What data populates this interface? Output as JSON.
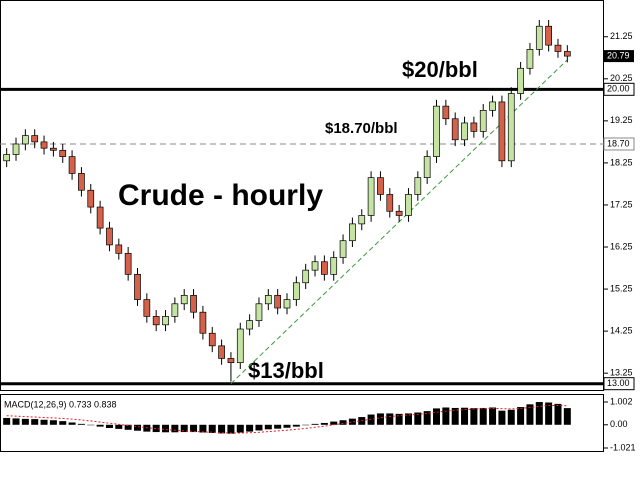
{
  "chart_data": [
    {
      "type": "candlestick",
      "title": "Crude - hourly",
      "open": [
        18.3,
        18.45,
        18.7,
        18.9,
        18.75,
        18.6,
        18.55,
        18.4,
        18.0,
        17.6,
        17.2,
        16.7,
        16.3,
        16.1,
        15.6,
        15.0,
        14.6,
        14.4,
        14.6,
        14.9,
        15.1,
        14.7,
        14.2,
        13.9,
        13.6,
        13.5,
        14.3,
        14.5,
        14.9,
        15.1,
        14.8,
        15.0,
        15.4,
        15.7,
        15.9,
        15.6,
        16.0,
        16.4,
        16.8,
        17.0,
        17.9,
        17.5,
        17.1,
        17.0,
        17.5,
        17.9,
        18.4,
        19.6,
        19.3,
        18.8,
        19.2,
        19.0,
        19.5,
        19.7,
        18.3,
        19.9,
        20.5,
        20.95,
        21.5,
        21.05,
        20.9
      ],
      "high": [
        18.6,
        18.85,
        19.05,
        19.05,
        18.9,
        18.75,
        18.7,
        18.55,
        18.15,
        17.75,
        17.35,
        16.85,
        16.45,
        16.25,
        15.75,
        15.15,
        14.75,
        14.75,
        15.05,
        15.25,
        15.25,
        14.85,
        14.35,
        14.05,
        13.75,
        14.45,
        14.65,
        15.05,
        15.25,
        15.25,
        15.15,
        15.55,
        15.85,
        16.05,
        16.05,
        16.15,
        16.55,
        16.95,
        17.15,
        18.05,
        18.05,
        17.65,
        17.25,
        17.65,
        18.05,
        18.55,
        19.75,
        19.75,
        19.45,
        19.35,
        19.35,
        19.65,
        19.85,
        19.85,
        20.05,
        20.65,
        21.1,
        21.65,
        21.65,
        21.2,
        21.05
      ],
      "low": [
        18.15,
        18.3,
        18.55,
        18.6,
        18.45,
        18.4,
        18.25,
        17.85,
        17.45,
        17.05,
        16.55,
        16.15,
        15.95,
        15.45,
        14.85,
        14.45,
        14.25,
        14.25,
        14.45,
        14.75,
        14.55,
        14.05,
        13.75,
        13.45,
        13.05,
        13.35,
        14.15,
        14.35,
        14.75,
        14.65,
        14.65,
        14.85,
        15.25,
        15.55,
        15.45,
        15.45,
        15.85,
        16.25,
        16.65,
        16.85,
        17.35,
        16.95,
        16.85,
        16.85,
        17.35,
        17.75,
        18.25,
        19.15,
        18.65,
        18.65,
        18.85,
        18.85,
        19.35,
        18.15,
        18.15,
        19.75,
        20.35,
        20.8,
        20.9,
        20.75,
        20.64
      ],
      "close": [
        18.45,
        18.7,
        18.9,
        18.75,
        18.6,
        18.55,
        18.4,
        18.0,
        17.6,
        17.2,
        16.7,
        16.3,
        16.1,
        15.6,
        15.0,
        14.6,
        14.4,
        14.6,
        14.9,
        15.1,
        14.7,
        14.2,
        13.9,
        13.6,
        13.5,
        14.3,
        14.5,
        14.9,
        15.1,
        14.8,
        15.0,
        15.4,
        15.7,
        15.9,
        15.6,
        16.0,
        16.4,
        16.8,
        17.0,
        17.9,
        17.5,
        17.1,
        17.0,
        17.5,
        17.9,
        18.4,
        19.6,
        19.3,
        18.8,
        19.2,
        19.0,
        19.5,
        19.7,
        18.3,
        19.9,
        20.5,
        20.95,
        21.5,
        21.05,
        20.9,
        20.79
      ],
      "up_color": "#c5e3a2",
      "down_color": "#d4624a",
      "ylim": [
        12.85,
        22.1
      ],
      "yticks": [
        21.25,
        20.25,
        19.25,
        18.25,
        17.25,
        16.25,
        15.25,
        14.25,
        13.25
      ],
      "current_price": 20.79,
      "levels": [
        {
          "value": 20.0,
          "label": "20.00",
          "style": "solid"
        },
        {
          "value": 18.7,
          "label": "18.70",
          "style": "dashed"
        },
        {
          "value": 13.0,
          "label": "13.00",
          "style": "solid"
        }
      ],
      "trendline": {
        "x": [
          24,
          60
        ],
        "y": [
          13.0,
          20.7
        ],
        "color": "#3a9a3a"
      },
      "annotations": [
        "$20/bbl",
        "$18.70/bbl",
        "$13/bbl"
      ]
    },
    {
      "type": "macd",
      "title": "MACD(12,26,9) 0.733 0.838",
      "histogram": [
        0.3,
        0.28,
        0.26,
        0.25,
        0.22,
        0.2,
        0.16,
        0.1,
        0.04,
        -0.02,
        -0.08,
        -0.14,
        -0.18,
        -0.22,
        -0.26,
        -0.3,
        -0.32,
        -0.33,
        -0.33,
        -0.32,
        -0.32,
        -0.34,
        -0.36,
        -0.38,
        -0.39,
        -0.34,
        -0.3,
        -0.25,
        -0.2,
        -0.17,
        -0.13,
        -0.08,
        -0.02,
        0.04,
        0.08,
        0.14,
        0.2,
        0.27,
        0.34,
        0.45,
        0.5,
        0.5,
        0.48,
        0.5,
        0.54,
        0.6,
        0.72,
        0.76,
        0.74,
        0.75,
        0.73,
        0.74,
        0.76,
        0.62,
        0.66,
        0.78,
        0.9,
        1.0,
        0.98,
        0.92,
        0.733
      ],
      "signal": [
        0.4,
        0.38,
        0.36,
        0.34,
        0.32,
        0.3,
        0.28,
        0.25,
        0.21,
        0.17,
        0.12,
        0.07,
        0.02,
        -0.03,
        -0.08,
        -0.13,
        -0.17,
        -0.21,
        -0.24,
        -0.27,
        -0.29,
        -0.31,
        -0.33,
        -0.35,
        -0.36,
        -0.36,
        -0.35,
        -0.33,
        -0.3,
        -0.27,
        -0.24,
        -0.2,
        -0.16,
        -0.11,
        -0.06,
        0.0,
        0.06,
        0.12,
        0.18,
        0.25,
        0.31,
        0.36,
        0.4,
        0.43,
        0.46,
        0.5,
        0.55,
        0.6,
        0.64,
        0.67,
        0.69,
        0.71,
        0.72,
        0.71,
        0.7,
        0.72,
        0.76,
        0.81,
        0.85,
        0.85,
        0.838
      ],
      "histogram_color": "#000000",
      "signal_color": "#e02020",
      "ylim": [
        -1.021,
        1.002
      ],
      "yticks": [
        1.002,
        {
          "value": 0,
          "label": "0.00"
        },
        -1.021
      ]
    }
  ]
}
